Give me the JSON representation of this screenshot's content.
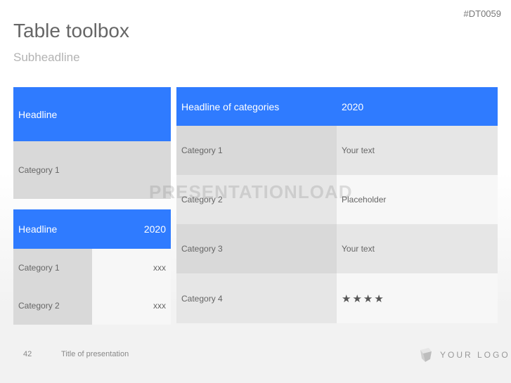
{
  "doc_code": "#DT0059",
  "title": "Table toolbox",
  "subheadline": "Subheadline",
  "watermark": "PRESENTATIONLOAD",
  "colors": {
    "accent": "#2f7bff",
    "cell_dark": "#d9d9d9",
    "cell_mid": "#e6e6e6",
    "cell_light": "#f7f7f7"
  },
  "table1": {
    "headline": "Headline",
    "rows": [
      "Category 1"
    ]
  },
  "table2": {
    "headline": "Headline",
    "year": "2020",
    "rows": [
      {
        "label": "Category 1",
        "value": "xxx"
      },
      {
        "label": "Category 2",
        "value": "xxx"
      }
    ]
  },
  "table3": {
    "headline": "Headline of categories",
    "year": "2020",
    "rows": [
      {
        "label": "Category 1",
        "value": "Your text"
      },
      {
        "label": "Category 2",
        "value": "Placeholder"
      },
      {
        "label": "Category 3",
        "value": "Your text"
      },
      {
        "label": "Category 4",
        "value": "",
        "stars": 4
      }
    ]
  },
  "footer": {
    "page": "42",
    "presentation_title": "Title of presentation",
    "logo_text": "YOUR LOGO"
  }
}
